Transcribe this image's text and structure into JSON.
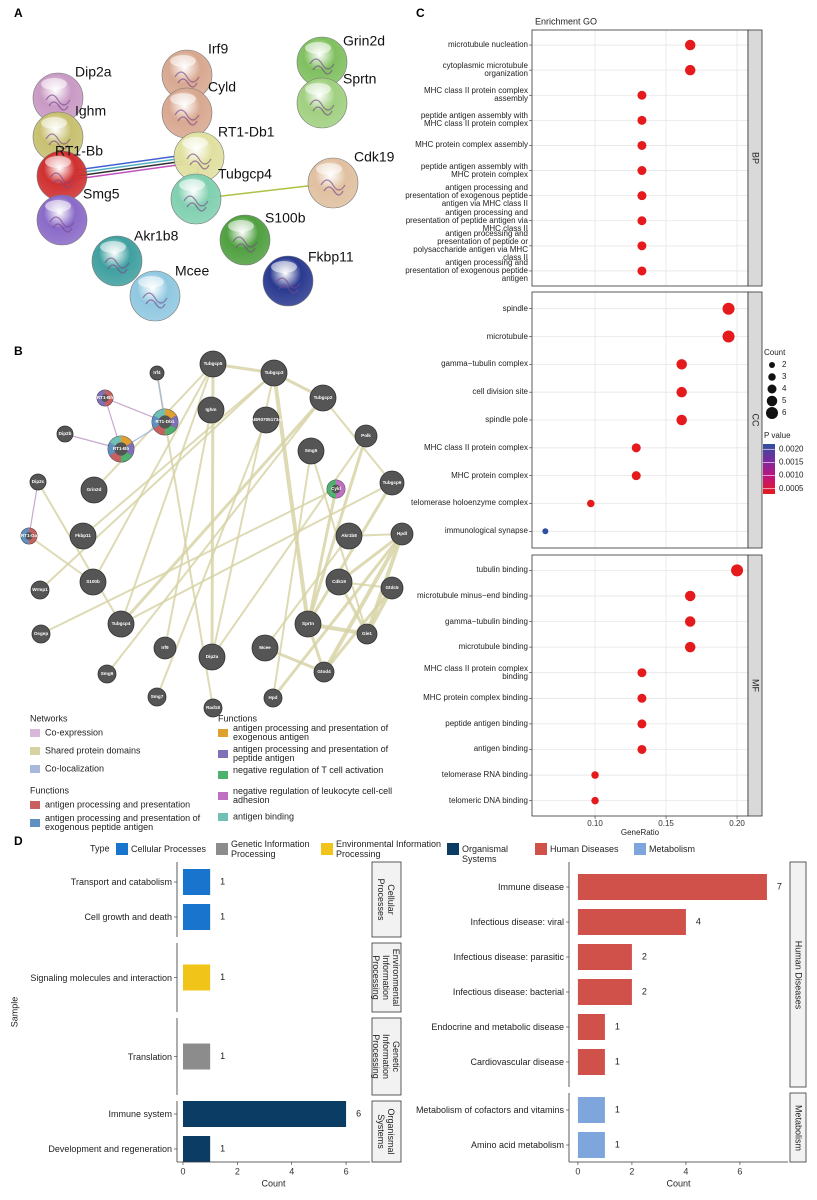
{
  "panel_labels": [
    "A",
    "B",
    "C",
    "D"
  ],
  "network_a": {
    "nodes": [
      "Dip2a",
      "Ighm",
      "RT1-Bb",
      "Smg5",
      "Irf9",
      "Cyld",
      "RT1-Db1",
      "Tubgcp4",
      "Grin2d",
      "Sprtn",
      "Cdk19",
      "S100b",
      "Akr1b8",
      "Mcee",
      "Fkbp11"
    ]
  },
  "network_b": {
    "nodes": [
      "Tubgcp5",
      "Tubgcp3",
      "Irf4",
      "RT1-Bh",
      "Ighm",
      "AABR07051734.1",
      "Tubgcp2",
      "RT1-Db1",
      "Dip2b",
      "Smg5",
      "Polk",
      "RT1-Bb",
      "Dip2c",
      "Grin2d",
      "Cyld",
      "Tubgcp6",
      "RT1-Da",
      "Fkbp11",
      "Akr1b8",
      "Hpdl",
      "Wrmp1",
      "S100b",
      "Cdk19",
      "Gtdc5",
      "Osgep",
      "Tubgcp4",
      "Sprtn",
      "Gle1",
      "Irf9",
      "Dip2a",
      "Mcee",
      "Smg6",
      "Gtod4",
      "Smg7",
      "Rad18",
      "Hpd"
    ],
    "legend_columns": [
      {
        "groups": [
          {
            "title": "Networks",
            "items": [
              {
                "name": "Co-expression",
                "color": "#d8b8d8"
              },
              {
                "name": "Shared protein domains",
                "color": "#d6d3a0"
              },
              {
                "name": "Co-localization",
                "color": "#a8b8dc"
              }
            ]
          },
          {
            "title": "Functions",
            "items": [
              {
                "name": "antigen processing and presentation",
                "color": "#c86060"
              },
              {
                "name": "antigen processing and presentation of exogenous peptide antigen",
                "color": "#6090c0"
              }
            ]
          }
        ]
      },
      {
        "groups": [
          {
            "title": "Functions",
            "items": [
              {
                "name": "antigen processing and presentation of exogenous antigen",
                "color": "#e0a030"
              },
              {
                "name": "antigen processing and presentation of peptide antigen",
                "color": "#8070b8"
              },
              {
                "name": "negative regulation of T cell activation",
                "color": "#50b070"
              },
              {
                "name": "negative regulation of leukocyte cell-cell adhesion",
                "color": "#c070c0"
              },
              {
                "name": "antigen binding",
                "color": "#70c0b8"
              }
            ]
          }
        ]
      }
    ]
  },
  "chart_data": [
    {
      "type": "dot",
      "title": "Enrichment GO",
      "x_label": "GeneRatio",
      "xlim": [
        0.0556,
        0.2077
      ],
      "xticks": [
        {
          "value": 0.1,
          "label": "0.10"
        },
        {
          "value": 0.15,
          "label": "0.15"
        },
        {
          "value": 0.2,
          "label": "0.20"
        }
      ],
      "grid": true,
      "facets": [
        {
          "name": "BP",
          "categories": [
            "microtubule nucleation",
            "cytoplasmic microtubule organization",
            "MHC class II protein complex assembly",
            "peptide antigen assembly with MHC class II protein complex",
            "MHC protein complex assembly",
            "peptide antigen assembly with MHC protein complex",
            "antigen processing and presentation of exogenous peptide antigen via MHC class II",
            "antigen processing and presentation of peptide antigen via MHC class II",
            "antigen processing and presentation of peptide or polysaccharide antigen via MHC class II",
            "antigen processing and presentation of exogenous peptide antigen"
          ],
          "values": [
            0.167,
            0.167,
            0.133,
            0.133,
            0.133,
            0.133,
            0.133,
            0.133,
            0.133,
            0.133
          ],
          "counts": [
            5,
            5,
            4,
            4,
            4,
            4,
            4,
            4,
            4,
            4
          ],
          "pvalues": [
            0.0003,
            0.0003,
            0.0003,
            0.0003,
            0.0003,
            0.0003,
            0.0003,
            0.0003,
            0.0003,
            0.0003
          ]
        },
        {
          "name": "CC",
          "categories": [
            "spindle",
            "microtubule",
            "gamma−tubulin complex",
            "cell division site",
            "spindle pole",
            "MHC class II protein complex",
            "MHC protein complex",
            "telomerase holoenzyme complex",
            "immunological synapse"
          ],
          "values": [
            0.194,
            0.194,
            0.161,
            0.161,
            0.161,
            0.129,
            0.129,
            0.097,
            0.065
          ],
          "counts": [
            6,
            6,
            5,
            5,
            5,
            4,
            4,
            3,
            2
          ],
          "pvalues": [
            0.0003,
            0.0003,
            0.0003,
            0.0003,
            0.0003,
            0.0003,
            0.0003,
            0.0003,
            0.0022
          ]
        },
        {
          "name": "MF",
          "categories": [
            "tubulin binding",
            "microtubule minus−end binding",
            "gamma−tubulin binding",
            "microtubule binding",
            "MHC class II protein complex binding",
            "MHC protein complex binding",
            "peptide antigen binding",
            "antigen binding",
            "telomerase RNA binding",
            "telomeric DNA binding"
          ],
          "values": [
            0.2,
            0.167,
            0.167,
            0.167,
            0.133,
            0.133,
            0.133,
            0.133,
            0.1,
            0.1
          ],
          "counts": [
            6,
            5,
            5,
            5,
            4,
            4,
            4,
            4,
            3,
            3
          ],
          "pvalues": [
            0.0003,
            0.0003,
            0.0003,
            0.0003,
            0.0003,
            0.0003,
            0.0003,
            0.0003,
            0.0003,
            0.0003
          ]
        }
      ],
      "size_title": "Count",
      "size_ticks": [
        2,
        3,
        4,
        5,
        6
      ],
      "color_title": "P value",
      "clim": [
        0.0003,
        0.0022
      ],
      "cticks": [
        {
          "value": 0.002,
          "label": "0.0020"
        },
        {
          "value": 0.0015,
          "label": "0.0015"
        },
        {
          "value": 0.001,
          "label": "0.0010"
        },
        {
          "value": 0.0005,
          "label": "0.0005"
        }
      ],
      "colors": [
        "#e41a1c",
        "#c2137b",
        "#7b2a9e",
        "#2f4f9f"
      ]
    },
    {
      "type": "hbar",
      "x_label": "Count",
      "y_label": "Sample",
      "legend_title": "Type",
      "legend": [
        {
          "name": "Cellular Processes",
          "color": "#1874cd"
        },
        {
          "name": "Genetic Information Processing",
          "color": "#8c8c8c"
        },
        {
          "name": "Environmental Information Processing",
          "color": "#f0c419"
        },
        {
          "name": "Organismal Systems",
          "color": "#0b3c64"
        },
        {
          "name": "Human Diseases",
          "color": "#d0504a"
        },
        {
          "name": "Metabolism",
          "color": "#7ea6dc"
        }
      ],
      "xlim": [
        -0.22,
        6.88
      ],
      "xticks": [
        0,
        2,
        4,
        6
      ],
      "facets": [
        {
          "name": "Cellular Processes",
          "color": "#1874cd",
          "categories": [
            "Transport and catabolism",
            "Cell growth and death"
          ],
          "values": [
            1,
            1
          ]
        },
        {
          "name": "Environmental Information Processing",
          "color": "#f0c419",
          "categories": [
            "Signaling molecules and interaction"
          ],
          "values": [
            1
          ]
        },
        {
          "name": "Genetic Information Processing",
          "color": "#8c8c8c",
          "categories": [
            "Translation"
          ],
          "values": [
            1
          ]
        },
        {
          "name": "Organismal Systems",
          "color": "#0b3c64",
          "categories": [
            "Immune system",
            "Development and regeneration"
          ],
          "values": [
            6,
            1
          ]
        }
      ]
    },
    {
      "type": "hbar",
      "x_label": "Count",
      "xlim": [
        -0.33,
        7.78
      ],
      "xticks": [
        0,
        2,
        4,
        6
      ],
      "facets": [
        {
          "name": "Human Diseases",
          "color": "#d0504a",
          "categories": [
            "Immune disease",
            "Infectious disease: viral",
            "Infectious disease: parasitic",
            "Infectious disease: bacterial",
            "Endocrine and metabolic disease",
            "Cardiovascular disease"
          ],
          "values": [
            7,
            4,
            2,
            2,
            1,
            1
          ]
        },
        {
          "name": "Metabolism",
          "color": "#7ea6dc",
          "categories": [
            "Metabolism of cofactors and vitamins",
            "Amino acid metabolism"
          ],
          "values": [
            1,
            1
          ]
        }
      ]
    }
  ]
}
